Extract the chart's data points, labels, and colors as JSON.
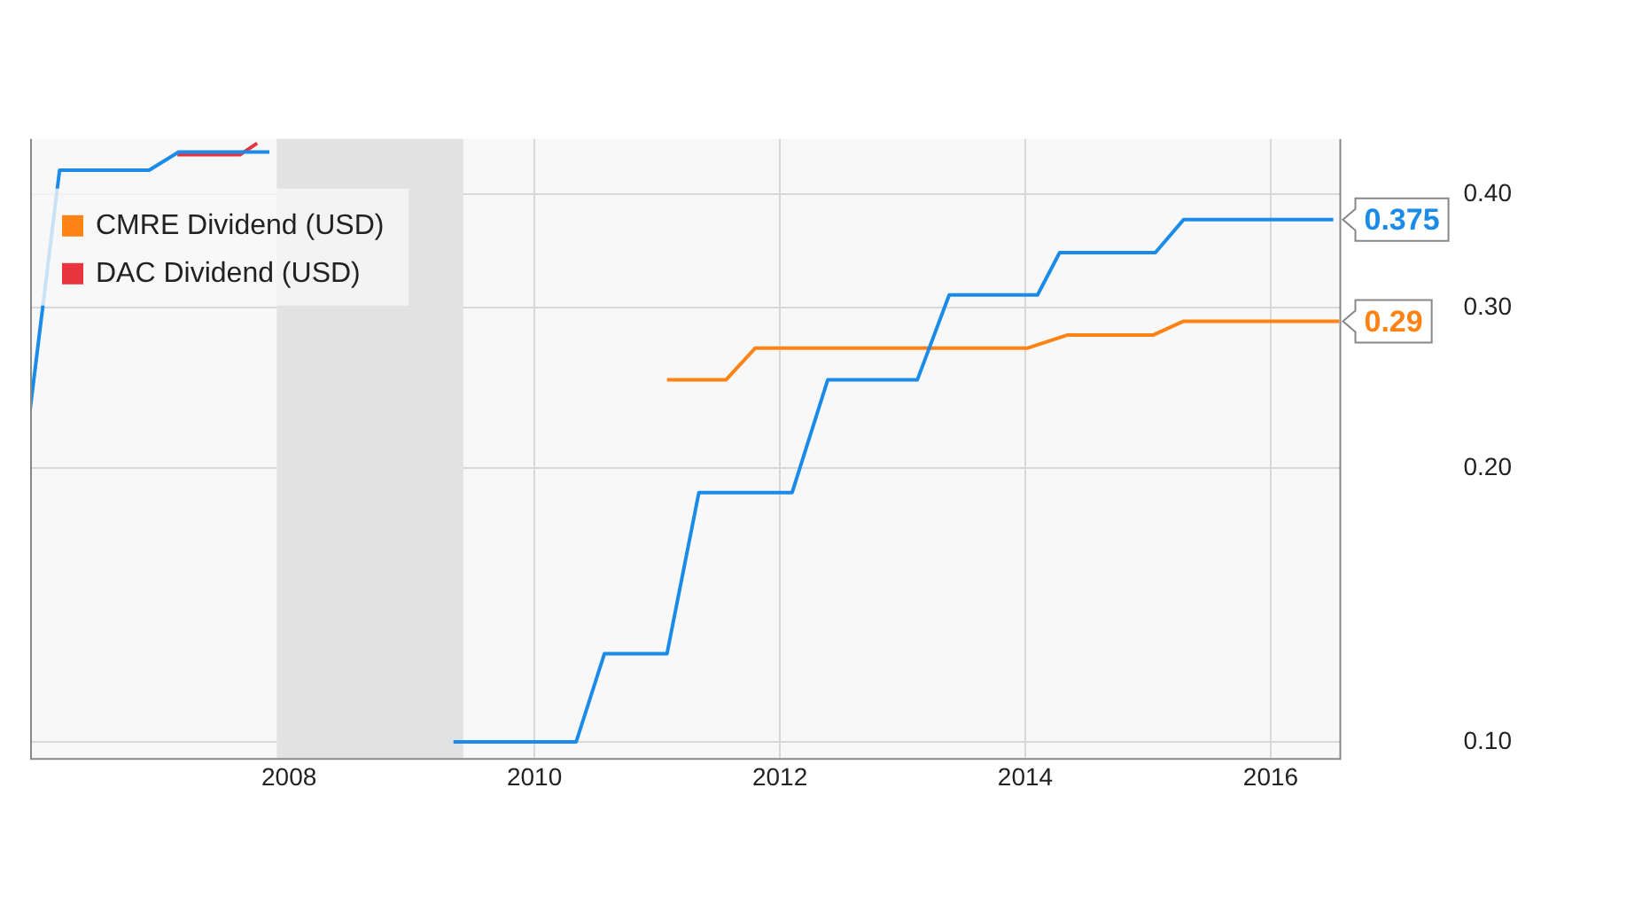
{
  "chart_data": {
    "type": "line",
    "log": "y",
    "grid": true,
    "legend": "top left",
    "marker": "none",
    "line_style": "solid",
    "xlim": [
      2005.89,
      2016.56
    ],
    "xticks": [
      2008,
      2010,
      2012,
      2014,
      2016
    ],
    "ylim": [
      0.096,
      0.46
    ],
    "yticks": [
      {
        "value": 0.1,
        "label": "0.10"
      },
      {
        "value": 0.2,
        "label": "0.20"
      },
      {
        "value": 0.3,
        "label": "0.30"
      },
      {
        "value": 0.4,
        "label": "0.40"
      }
    ],
    "bands": [
      {
        "axis": "x",
        "from": 2007.9,
        "to": 2009.42,
        "color": "#e2e2e2"
      }
    ],
    "series": [
      {
        "color": "#1a8be8",
        "x": [
          2005.89,
          2006.13,
          2006.86,
          2007.1,
          2007.84,
          2008.5,
          2009.34,
          2010.34,
          2010.57,
          2011.08,
          2011.34,
          2012.1,
          2012.39,
          2013.12,
          2013.38,
          2014.1,
          2014.28,
          2015.06,
          2015.29,
          2016.51
        ],
        "values": [
          0.232,
          0.425,
          0.425,
          0.445,
          0.445,
          null,
          0.1,
          0.1,
          0.125,
          0.125,
          0.188,
          0.188,
          0.25,
          0.25,
          0.31,
          0.31,
          0.345,
          0.345,
          0.375,
          0.375
        ],
        "value_labels": [
          null,
          null,
          null,
          null,
          null,
          null,
          null,
          null,
          null,
          null,
          null,
          null,
          null,
          null,
          null,
          null,
          null,
          null,
          null,
          "0.375"
        ]
      },
      {
        "name": "CMRE Dividend (USD)",
        "color": "#ff8214",
        "x": [
          2011.08,
          2011.56,
          2011.8,
          2014.02,
          2014.34,
          2015.04,
          2015.29,
          2016.56
        ],
        "values": [
          0.25,
          0.25,
          0.271,
          0.271,
          0.28,
          0.28,
          0.29,
          0.29
        ],
        "value_labels": [
          null,
          null,
          null,
          null,
          null,
          null,
          null,
          "0.29"
        ]
      },
      {
        "name": "DAC Dividend (USD)",
        "color": "#e8343c",
        "x": [
          2007.09,
          2007.6,
          2007.74
        ],
        "values": [
          0.442,
          0.442,
          0.455
        ]
      }
    ]
  }
}
